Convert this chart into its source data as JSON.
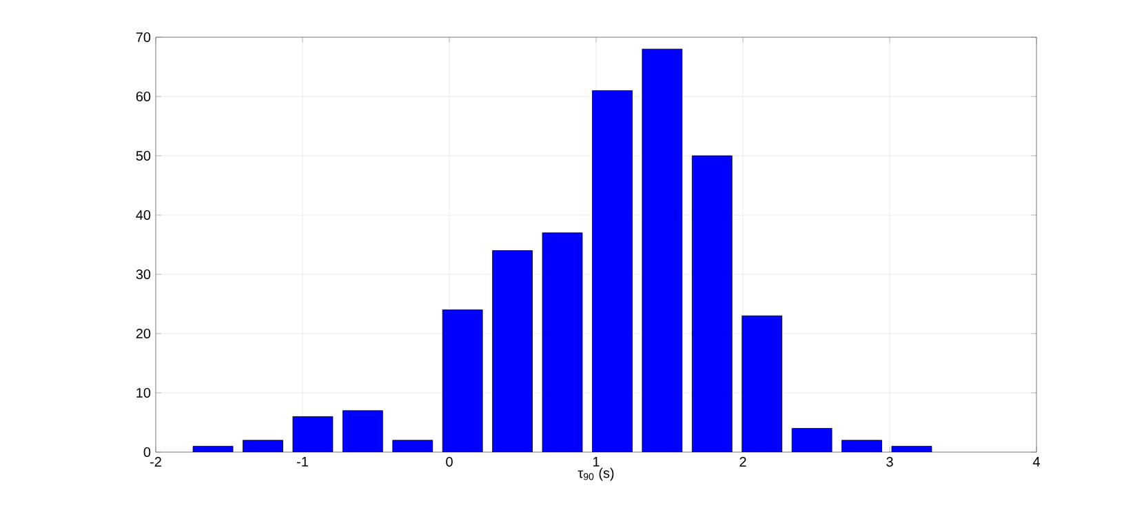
{
  "chart_data": {
    "type": "bar",
    "xlabel": "τ$_{90}$ (s)",
    "x": [
      -1.61,
      -1.27,
      -0.93,
      -0.59,
      -0.25,
      0.09,
      0.43,
      0.77,
      1.11,
      1.45,
      1.79,
      2.13,
      2.47,
      2.81,
      3.15
    ],
    "values": [
      1,
      2,
      6,
      7,
      2,
      24,
      34,
      37,
      61,
      68,
      50,
      23,
      4,
      2,
      1
    ],
    "color": "#0000ff",
    "xlim": [
      -2,
      4
    ],
    "xticks": [
      -2,
      -1,
      0,
      1,
      2,
      3,
      4
    ],
    "ylim": [
      0,
      70
    ],
    "yticks": [
      0,
      10,
      20,
      30,
      40,
      50,
      60,
      70
    ],
    "grid": true
  }
}
